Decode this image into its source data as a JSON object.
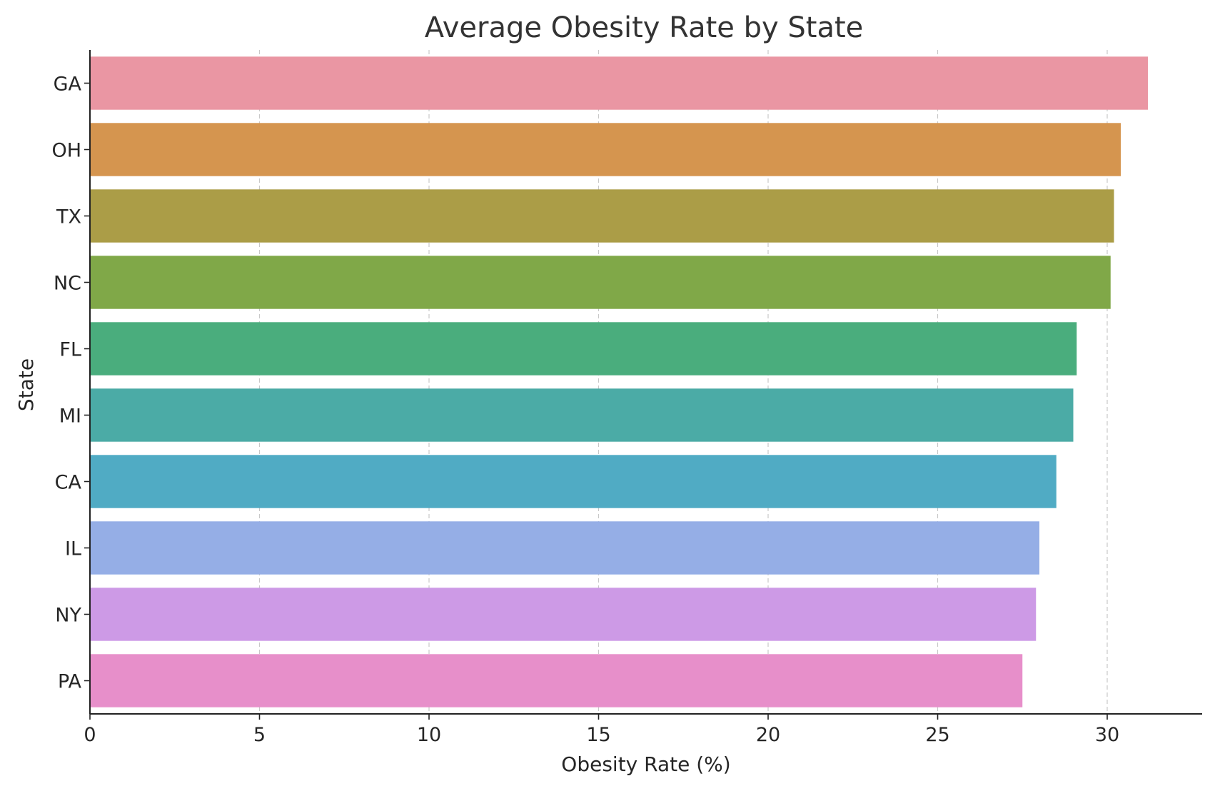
{
  "chart_data": {
    "type": "bar",
    "orientation": "horizontal",
    "title": "Average Obesity Rate by State",
    "xlabel": "Obesity Rate (%)",
    "ylabel": "State",
    "categories": [
      "GA",
      "OH",
      "TX",
      "NC",
      "FL",
      "MI",
      "CA",
      "IL",
      "NY",
      "PA"
    ],
    "values": [
      31.2,
      30.4,
      30.2,
      30.1,
      29.1,
      29.0,
      28.5,
      28.0,
      27.9,
      27.5
    ],
    "colors": [
      "#ea96a3",
      "#d5954f",
      "#ab9d47",
      "#80a848",
      "#4aad7d",
      "#4bab a6",
      "#50abc4",
      "#95aee6",
      "#cd9ae6",
      "#e78fca"
    ],
    "xlim": [
      0,
      32.8
    ],
    "xticks": [
      "0",
      "5",
      "10",
      "15",
      "20",
      "25",
      "30"
    ],
    "grid": "x-dashed",
    "legend": "none"
  }
}
